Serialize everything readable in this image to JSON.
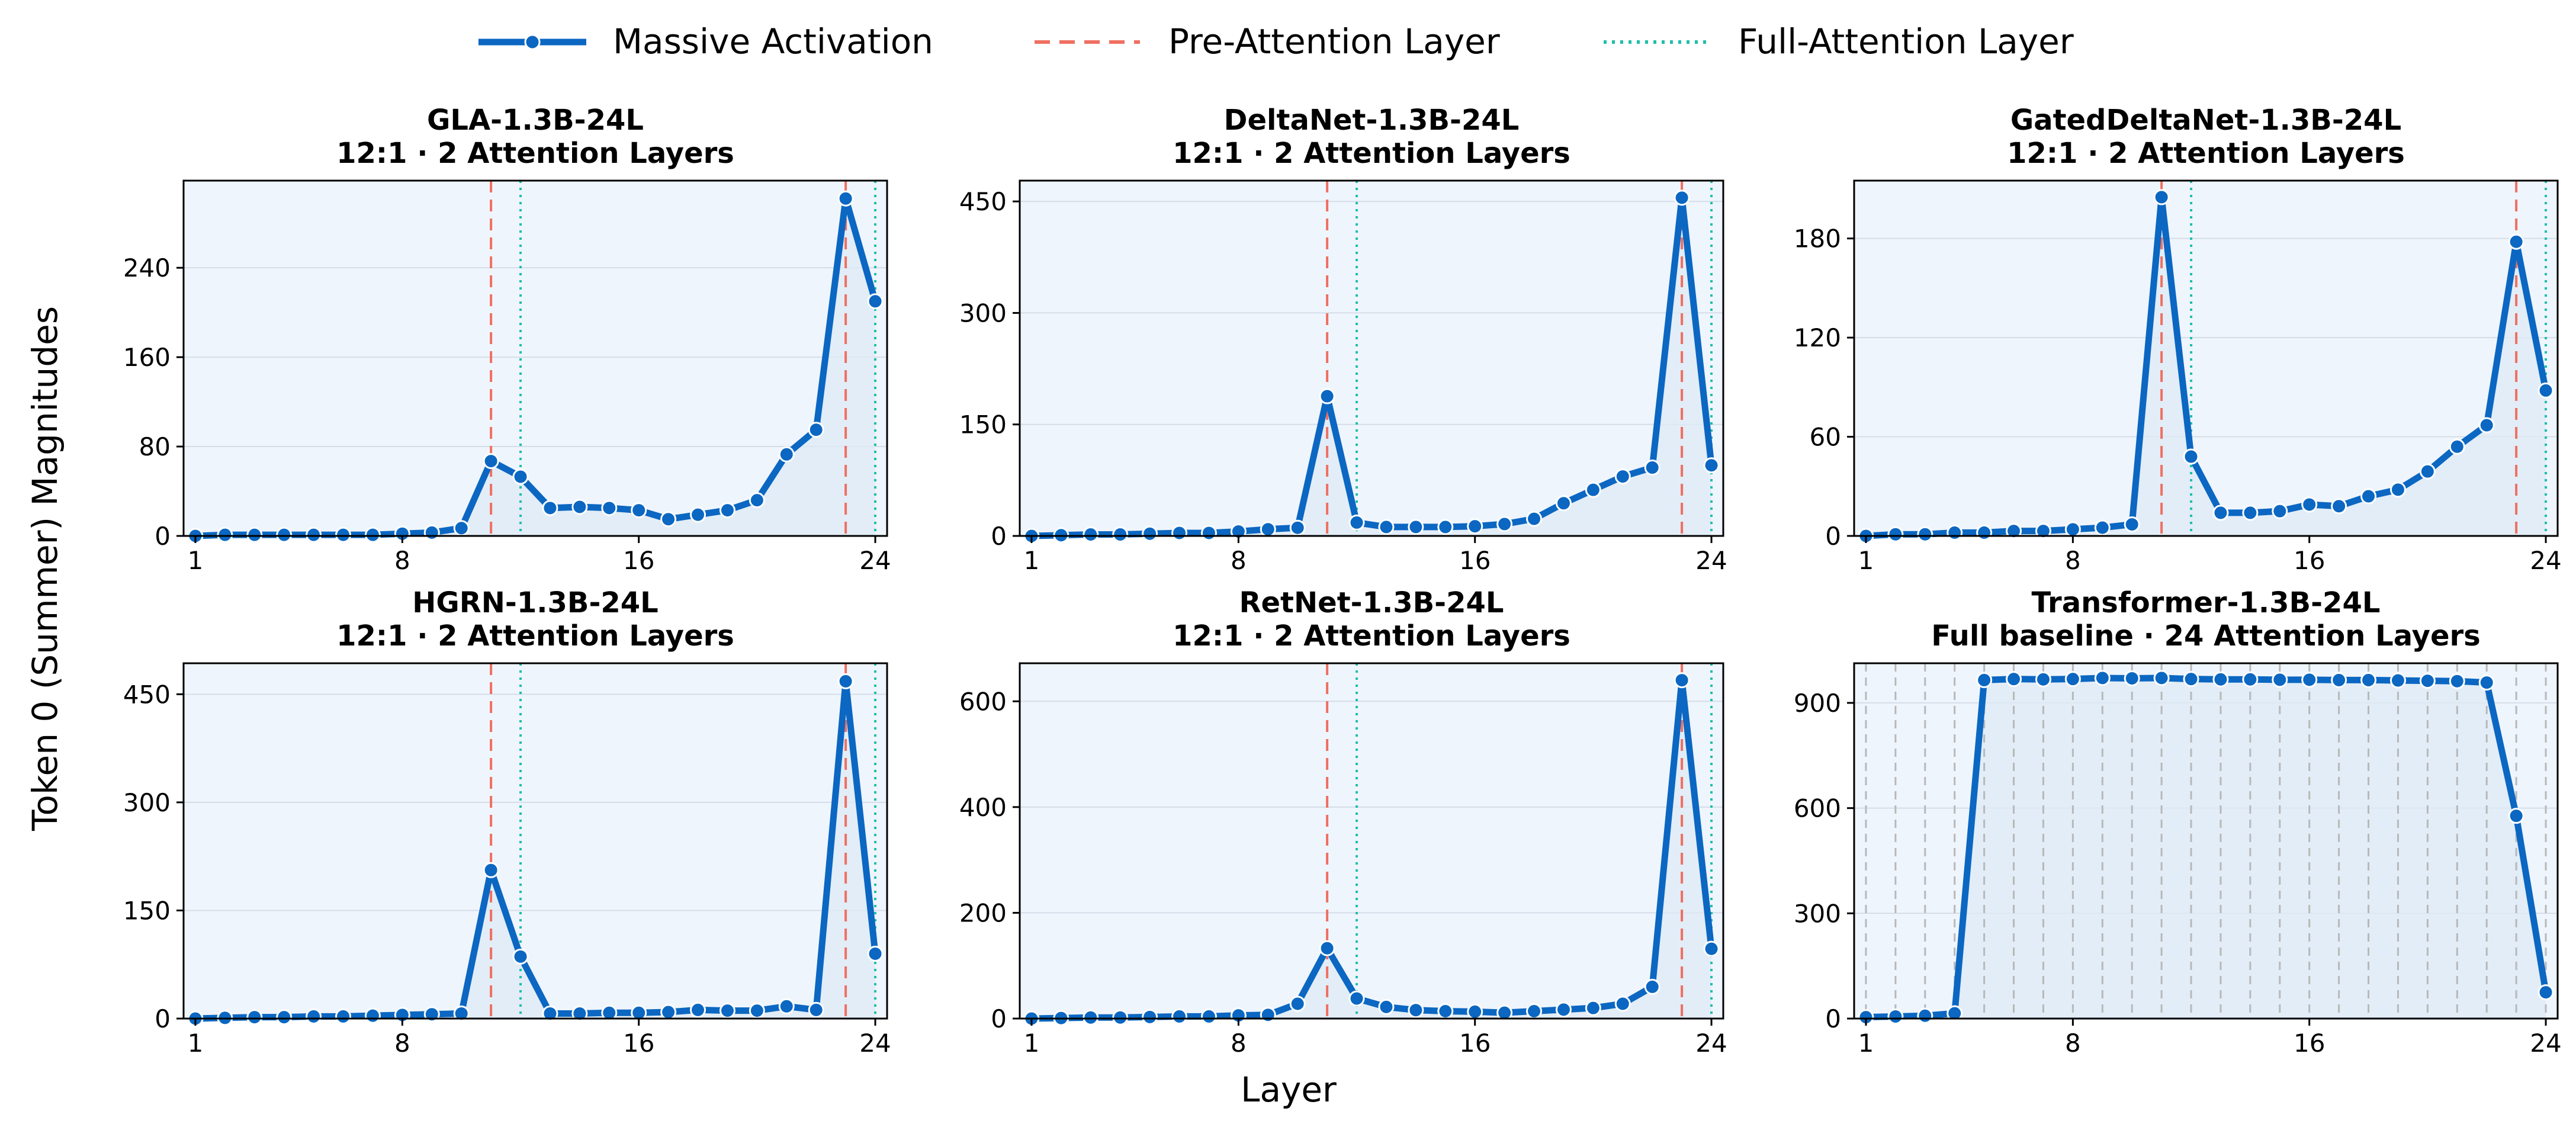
{
  "figure": {
    "ylabel": "Token 0 (Summer) Magnitudes",
    "xlabel": "Layer"
  },
  "legend": {
    "items": [
      {
        "label": "Massive Activation",
        "style": "line-marker",
        "color": "#0b67c2"
      },
      {
        "label": "Pre-Attention Layer",
        "style": "dashed",
        "color": "#ef6f61"
      },
      {
        "label": "Full-Attention Layer",
        "style": "dotted",
        "color": "#1fbfaa"
      }
    ]
  },
  "colors": {
    "series": "#0b67c2",
    "pre_attention": "#ef6f61",
    "full_attention": "#1fbfaa",
    "panel_bg": "#eff5fc",
    "fill": "#dde9f5",
    "grid": "#d5dde8",
    "baseline_dashes": "#b8b8b8"
  },
  "chart_data": [
    {
      "type": "line",
      "title": "GLA-1.3B-24L",
      "subtitle": "12:1 · 2 Attention Layers",
      "x": [
        1,
        2,
        3,
        4,
        5,
        6,
        7,
        8,
        9,
        10,
        11,
        12,
        13,
        14,
        15,
        16,
        17,
        18,
        19,
        20,
        21,
        22,
        23,
        24
      ],
      "values": [
        0,
        1,
        1,
        1,
        1,
        1,
        1,
        2,
        3,
        7,
        67,
        53,
        25,
        26,
        25,
        23,
        15,
        19,
        23,
        32,
        73,
        95,
        302,
        210
      ],
      "xticks": [
        1,
        8,
        16,
        24
      ],
      "yticks": [
        0,
        80,
        160,
        240
      ],
      "ylim": [
        0,
        318
      ],
      "pre_attention": [
        11,
        23
      ],
      "full_attention": [
        12,
        24
      ],
      "grid": true
    },
    {
      "type": "line",
      "title": "DeltaNet-1.3B-24L",
      "subtitle": "12:1 · 2 Attention Layers",
      "x": [
        1,
        2,
        3,
        4,
        5,
        6,
        7,
        8,
        9,
        10,
        11,
        12,
        13,
        14,
        15,
        16,
        17,
        18,
        19,
        20,
        21,
        22,
        23,
        24
      ],
      "values": [
        0,
        1,
        2,
        2,
        3,
        4,
        4,
        6,
        9,
        11,
        188,
        18,
        12,
        12,
        12,
        13,
        16,
        23,
        44,
        62,
        80,
        92,
        455,
        95
      ],
      "xticks": [
        1,
        8,
        16,
        24
      ],
      "yticks": [
        0,
        150,
        300,
        450
      ],
      "ylim": [
        0,
        478
      ],
      "pre_attention": [
        11,
        23
      ],
      "full_attention": [
        12,
        24
      ],
      "grid": true
    },
    {
      "type": "line",
      "title": "GatedDeltaNet-1.3B-24L",
      "subtitle": "12:1 · 2 Attention Layers",
      "x": [
        1,
        2,
        3,
        4,
        5,
        6,
        7,
        8,
        9,
        10,
        11,
        12,
        13,
        14,
        15,
        16,
        17,
        18,
        19,
        20,
        21,
        22,
        23,
        24
      ],
      "values": [
        0,
        1,
        1,
        2,
        2,
        3,
        3,
        4,
        5,
        7,
        205,
        48,
        14,
        14,
        15,
        19,
        18,
        24,
        28,
        39,
        54,
        67,
        178,
        88
      ],
      "xticks": [
        1,
        8,
        16,
        24
      ],
      "yticks": [
        0,
        60,
        120,
        180
      ],
      "ylim": [
        0,
        215
      ],
      "pre_attention": [
        11,
        23
      ],
      "full_attention": [
        12,
        24
      ],
      "grid": true
    },
    {
      "type": "line",
      "title": "HGRN-1.3B-24L",
      "subtitle": "12:1 · 2 Attention Layers",
      "x": [
        1,
        2,
        3,
        4,
        5,
        6,
        7,
        8,
        9,
        10,
        11,
        12,
        13,
        14,
        15,
        16,
        17,
        18,
        19,
        20,
        21,
        22,
        23,
        24
      ],
      "values": [
        0,
        1,
        2,
        2,
        3,
        3,
        4,
        5,
        6,
        7,
        206,
        86,
        7,
        7,
        8,
        8,
        9,
        12,
        11,
        11,
        17,
        12,
        468,
        90
      ],
      "xticks": [
        1,
        8,
        16,
        24
      ],
      "yticks": [
        0,
        150,
        300,
        450
      ],
      "ylim": [
        0,
        493
      ],
      "pre_attention": [
        11,
        23
      ],
      "full_attention": [
        12,
        24
      ],
      "grid": true
    },
    {
      "type": "line",
      "title": "RetNet-1.3B-24L",
      "subtitle": "12:1 · 2 Attention Layers",
      "x": [
        1,
        2,
        3,
        4,
        5,
        6,
        7,
        8,
        9,
        10,
        11,
        12,
        13,
        14,
        15,
        16,
        17,
        18,
        19,
        20,
        21,
        22,
        23,
        24
      ],
      "values": [
        0,
        1,
        2,
        2,
        3,
        4,
        4,
        6,
        7,
        28,
        133,
        38,
        22,
        16,
        14,
        13,
        11,
        14,
        17,
        20,
        28,
        60,
        640,
        132
      ],
      "xticks": [
        1,
        8,
        16,
        24
      ],
      "yticks": [
        0,
        200,
        400,
        600
      ],
      "ylim": [
        0,
        672
      ],
      "pre_attention": [
        11,
        23
      ],
      "full_attention": [
        12,
        24
      ],
      "grid": true
    },
    {
      "type": "line",
      "title": "Transformer-1.3B-24L",
      "subtitle": "Full baseline · 24 Attention Layers",
      "x": [
        1,
        2,
        3,
        4,
        5,
        6,
        7,
        8,
        9,
        10,
        11,
        12,
        13,
        14,
        15,
        16,
        17,
        18,
        19,
        20,
        21,
        22,
        23,
        24
      ],
      "values": [
        4,
        6,
        8,
        15,
        965,
        968,
        967,
        968,
        971,
        970,
        971,
        968,
        967,
        967,
        966,
        966,
        965,
        965,
        964,
        963,
        962,
        958,
        578,
        75
      ],
      "xticks": [
        1,
        8,
        16,
        24
      ],
      "yticks": [
        0,
        300,
        600,
        900
      ],
      "ylim": [
        0,
        1013
      ],
      "pre_attention": [],
      "full_attention": [],
      "all_layers_attention": true,
      "grid": true
    }
  ]
}
